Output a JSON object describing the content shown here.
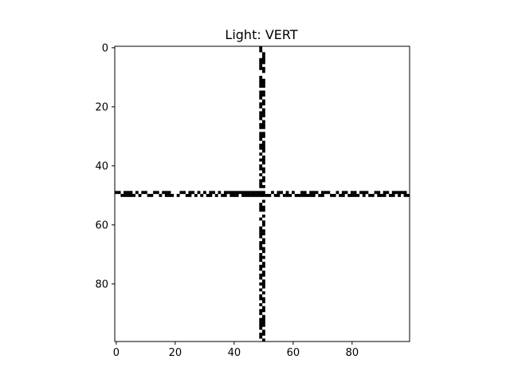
{
  "chart_data": {
    "type": "heatmap",
    "title": "Light: VERT",
    "xlabel": "",
    "ylabel": "",
    "grid_size": [
      100,
      100
    ],
    "xlim": [
      -0.5,
      99.5
    ],
    "ylim": [
      99.5,
      -0.5
    ],
    "y_inverted": true,
    "colormap": "binary",
    "background_value": 0,
    "foreground_value": 1,
    "x_ticks": [
      0,
      20,
      40,
      60,
      80
    ],
    "y_ticks": [
      0,
      20,
      40,
      60,
      80
    ],
    "x_tick_labels": [
      "0",
      "20",
      "40",
      "60",
      "80"
    ],
    "y_tick_labels": [
      "0",
      "20",
      "40",
      "60",
      "80"
    ],
    "vertical_road": {
      "columns": [
        49,
        50
      ],
      "rows_col49": [
        0,
        1,
        4,
        5,
        6,
        7,
        10,
        11,
        12,
        13,
        15,
        16,
        17,
        19,
        20,
        22,
        23,
        24,
        26,
        27,
        29,
        30,
        31,
        33,
        34,
        36,
        38,
        40,
        41,
        43,
        45,
        46,
        47,
        49,
        50,
        53,
        54,
        55,
        58,
        61,
        62,
        63,
        64,
        66,
        67,
        68,
        70,
        71,
        72,
        74,
        75,
        77,
        78,
        80,
        82,
        84,
        85,
        87,
        89,
        90,
        92,
        93,
        94,
        95,
        97,
        98
      ],
      "rows_col50": [
        2,
        3,
        4,
        5,
        7,
        8,
        11,
        12,
        13,
        15,
        16,
        18,
        19,
        21,
        22,
        23,
        25,
        26,
        27,
        29,
        30,
        32,
        33,
        34,
        35,
        37,
        38,
        39,
        41,
        42,
        44,
        45,
        47,
        49,
        50,
        52,
        54,
        55,
        57,
        59,
        60,
        62,
        63,
        65,
        66,
        68,
        69,
        71,
        73,
        74,
        76,
        77,
        79,
        80,
        81,
        83,
        85,
        86,
        88,
        89,
        91,
        92,
        93,
        94,
        96,
        97,
        99
      ]
    },
    "horizontal_road": {
      "rows": [
        49,
        50
      ],
      "cols_row49": [
        0,
        1,
        3,
        4,
        5,
        7,
        9,
        10,
        13,
        14,
        16,
        17,
        18,
        22,
        23,
        25,
        26,
        28,
        30,
        32,
        33,
        35,
        37,
        38,
        39,
        40,
        41,
        42,
        43,
        44,
        45,
        46,
        47,
        48,
        53,
        55,
        56,
        58,
        60,
        63,
        64,
        66,
        67,
        68,
        70,
        71,
        72,
        75,
        77,
        78,
        80,
        81,
        83,
        84,
        85,
        88,
        89,
        91,
        92,
        94,
        95,
        96,
        97,
        98
      ],
      "cols_row50": [
        2,
        3,
        4,
        5,
        6,
        8,
        11,
        12,
        15,
        17,
        18,
        19,
        21,
        24,
        25,
        27,
        29,
        31,
        32,
        34,
        36,
        37,
        39,
        40,
        41,
        43,
        44,
        45,
        46,
        47,
        48,
        51,
        52,
        54,
        55,
        57,
        58,
        59,
        61,
        62,
        63,
        64,
        65,
        66,
        67,
        69,
        70,
        73,
        74,
        76,
        77,
        79,
        80,
        81,
        82,
        84,
        86,
        87,
        89,
        90,
        91,
        93,
        94,
        96,
        98,
        99
      ]
    }
  }
}
